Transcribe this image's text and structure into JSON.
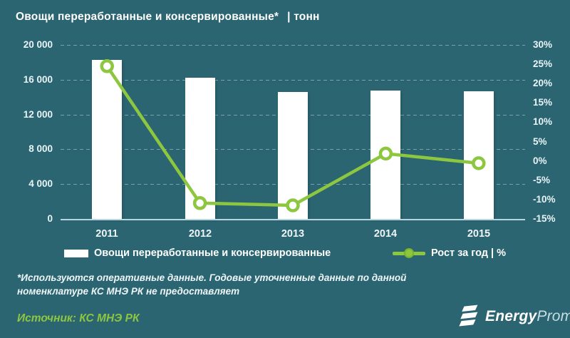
{
  "title": {
    "text": "Овощи переработанные и консервированные*",
    "unit": "| тонн"
  },
  "chart_data": {
    "type": "bar",
    "subtype": "combo bar+line, dual y-axes",
    "categories": [
      "2011",
      "2012",
      "2013",
      "2014",
      "2015"
    ],
    "series": [
      {
        "name": "Овощи переработанные и консервированные",
        "type": "bar",
        "axis": "left",
        "unit": "тонн",
        "color": "#ffffff",
        "values": [
          18300,
          16250,
          14600,
          14750,
          14700
        ]
      },
      {
        "name": "Рост за год | %",
        "type": "line",
        "axis": "right",
        "unit": "%",
        "color": "#8dc63f",
        "values": [
          24.5,
          -10.9,
          -11.5,
          1.9,
          -0.6
        ]
      }
    ],
    "left_axis": {
      "min": 0,
      "max": 20000,
      "ticks": [
        {
          "value": 20000,
          "label": "20 000"
        },
        {
          "value": 16000,
          "label": "16 000"
        },
        {
          "value": 12000,
          "label": "12 000"
        },
        {
          "value": 8000,
          "label": "8 000"
        },
        {
          "value": 4000,
          "label": "4 000"
        },
        {
          "value": 0,
          "label": "0"
        }
      ]
    },
    "right_axis": {
      "min": -15,
      "max": 30,
      "ticks": [
        {
          "value": 30,
          "label": "30%"
        },
        {
          "value": 25,
          "label": "25%"
        },
        {
          "value": 20,
          "label": "20%"
        },
        {
          "value": 15,
          "label": "15%"
        },
        {
          "value": 10,
          "label": "10%"
        },
        {
          "value": 5,
          "label": "5%"
        },
        {
          "value": 0,
          "label": "0%"
        },
        {
          "value": -5,
          "label": "-5%"
        },
        {
          "value": -10,
          "label": "-10%"
        },
        {
          "value": -15,
          "label": "-15%"
        }
      ]
    },
    "grid": "horizontal dashed",
    "legend_position": "bottom",
    "title": "Овощи переработанные и консервированные* | тонн"
  },
  "legend": {
    "bar_label": "Овощи переработанные и консервированные",
    "line_label": "Рост за год | %"
  },
  "footnote": {
    "lines": [
      "*Используются оперативные данные. Годовые уточненные данные по данной",
      "номенклатуре КС МНЭ РК не предоставляет"
    ]
  },
  "source": {
    "label": "Источник: КС МНЭ РК"
  },
  "logo": {
    "name": "EnergyProm",
    "part_bold": "Energy",
    "part_light": "Prom"
  },
  "colors": {
    "background": "#2b6571",
    "accent_green": "#8dc63f",
    "bar_fill": "#ffffff",
    "grid_line": "#d6eaf0",
    "axis_line": "#b9d6e0",
    "text": "#ffffff"
  }
}
